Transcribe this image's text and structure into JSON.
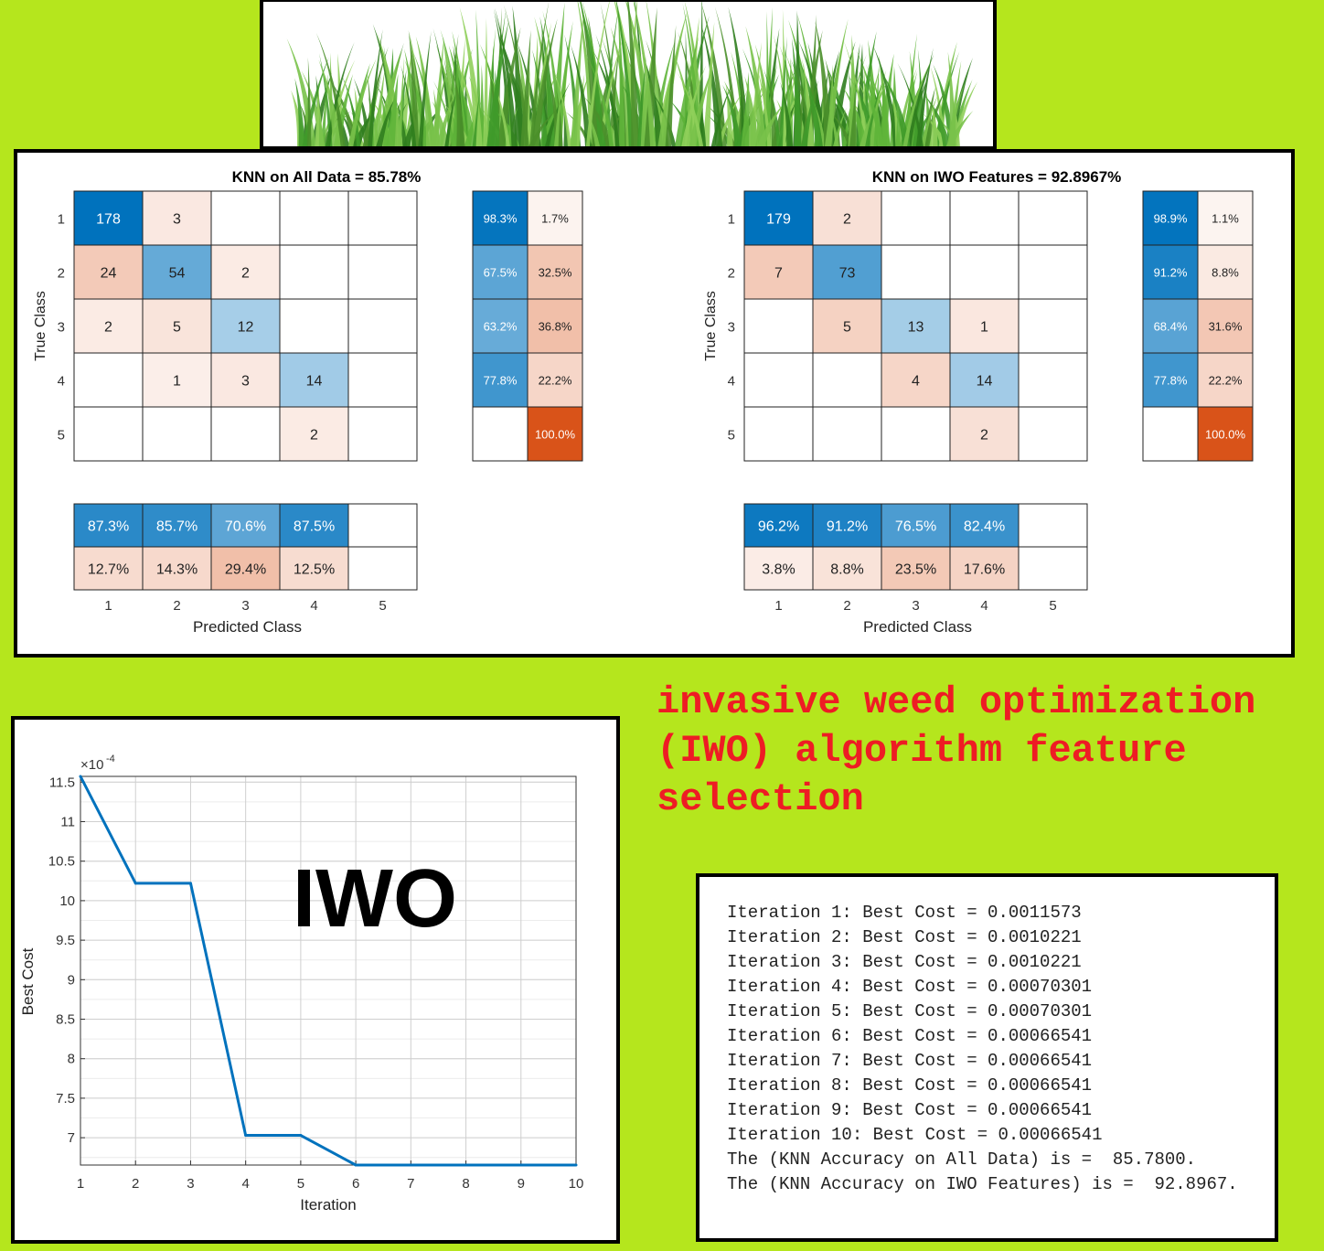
{
  "headline": "invasive weed optimization (IWO) algorithm feature selection",
  "conv_overlay_text": "IWO",
  "confusion_matrices": [
    {
      "title": "KNN on All Data =  85.78%",
      "ylabel": "True Class",
      "xlabel": "Predicted Class",
      "tick_labels": [
        "1",
        "2",
        "3",
        "4",
        "5"
      ],
      "counts": [
        [
          178,
          3,
          null,
          null,
          null
        ],
        [
          24,
          54,
          2,
          null,
          null
        ],
        [
          2,
          5,
          12,
          null,
          null
        ],
        [
          null,
          1,
          3,
          14,
          null
        ],
        [
          null,
          null,
          null,
          2,
          null
        ]
      ],
      "row_summary": [
        [
          "98.3%",
          "1.7%"
        ],
        [
          "67.5%",
          "32.5%"
        ],
        [
          "63.2%",
          "36.8%"
        ],
        [
          "77.8%",
          "22.2%"
        ],
        [
          "",
          "100.0%"
        ]
      ],
      "col_summary": [
        [
          "87.3%",
          "85.7%",
          "70.6%",
          "87.5%",
          ""
        ],
        [
          "12.7%",
          "14.3%",
          "29.4%",
          "12.5%",
          ""
        ]
      ]
    },
    {
      "title": "KNN on IWO Features =  92.8967%",
      "ylabel": "True Class",
      "xlabel": "Predicted Class",
      "tick_labels": [
        "1",
        "2",
        "3",
        "4",
        "5"
      ],
      "counts": [
        [
          179,
          2,
          null,
          null,
          null
        ],
        [
          7,
          73,
          null,
          null,
          null
        ],
        [
          null,
          5,
          13,
          1,
          null
        ],
        [
          null,
          null,
          4,
          14,
          null
        ],
        [
          null,
          null,
          null,
          2,
          null
        ]
      ],
      "row_summary": [
        [
          "98.9%",
          "1.1%"
        ],
        [
          "91.2%",
          "8.8%"
        ],
        [
          "68.4%",
          "31.6%"
        ],
        [
          "77.8%",
          "22.2%"
        ],
        [
          "",
          "100.0%"
        ]
      ],
      "col_summary": [
        [
          "96.2%",
          "91.2%",
          "76.5%",
          "82.4%",
          ""
        ],
        [
          "3.8%",
          "8.8%",
          "23.5%",
          "17.6%",
          ""
        ]
      ]
    }
  ],
  "chart_data": {
    "type": "line",
    "xlabel": "Iteration",
    "ylabel": "Best Cost",
    "exponent_label": "×10",
    "exponent_power": "-4",
    "x": [
      1,
      2,
      3,
      4,
      5,
      6,
      7,
      8,
      9,
      10
    ],
    "y": [
      11.573,
      10.221,
      10.221,
      7.0301,
      7.0301,
      6.6541,
      6.6541,
      6.6541,
      6.6541,
      6.6541
    ],
    "y_scale_note": "values shown in units of 1e-4",
    "xlim": [
      1,
      10
    ],
    "ylim": [
      6.6541,
      11.573
    ],
    "xticks": [
      "1",
      "2",
      "3",
      "4",
      "5",
      "6",
      "7",
      "8",
      "9",
      "10"
    ],
    "yticks": [
      "7",
      "7.5",
      "8",
      "8.5",
      "9",
      "9.5",
      "10",
      "10.5",
      "11",
      "11.5"
    ],
    "grid": true,
    "line_color": "#0072bd"
  },
  "log_lines": [
    "Iteration 1: Best Cost = 0.0011573",
    "Iteration 2: Best Cost = 0.0010221",
    "Iteration 3: Best Cost = 0.0010221",
    "Iteration 4: Best Cost = 0.00070301",
    "Iteration 5: Best Cost = 0.00070301",
    "Iteration 6: Best Cost = 0.00066541",
    "Iteration 7: Best Cost = 0.00066541",
    "Iteration 8: Best Cost = 0.00066541",
    "Iteration 9: Best Cost = 0.00066541",
    "Iteration 10: Best Cost = 0.00066541",
    "The (KNN Accuracy on All Data) is =  85.7800.",
    "The (KNN Accuracy on IWO Features) is =  92.8967."
  ],
  "colors": {
    "background": "#b5e61d",
    "headline": "#ee1c24",
    "blue_strong": "#0072bd",
    "orange_strong": "#d95319"
  }
}
